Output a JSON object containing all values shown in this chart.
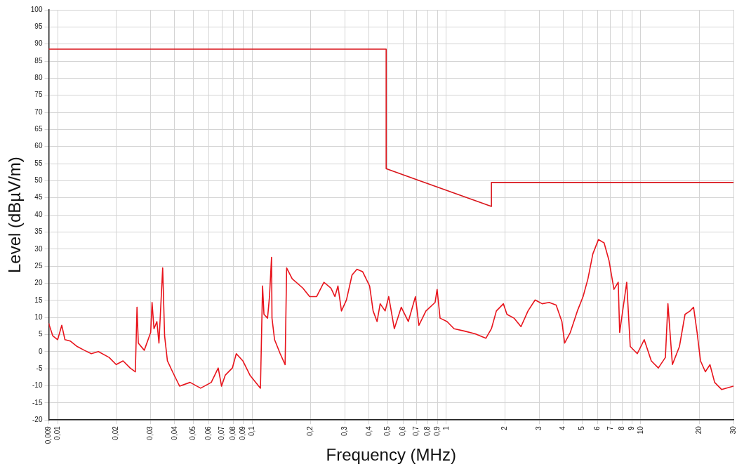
{
  "chart_data": {
    "type": "line",
    "xlabel": "Frequency (MHz)",
    "ylabel": "Level (dBµV/m)",
    "log": "x",
    "grid": true,
    "legend": false,
    "marker": "none",
    "line_style": "solid",
    "xlim": [
      0.009,
      30
    ],
    "ylim": [
      -20,
      100
    ],
    "xticks": [
      {
        "value": 0.009,
        "label": "0,009"
      },
      {
        "value": 0.01,
        "label": "0,01"
      },
      {
        "value": 0.02,
        "label": "0,02"
      },
      {
        "value": 0.03,
        "label": "0,03"
      },
      {
        "value": 0.04,
        "label": "0,04"
      },
      {
        "value": 0.05,
        "label": "0,05"
      },
      {
        "value": 0.06,
        "label": "0,06"
      },
      {
        "value": 0.07,
        "label": "0,07"
      },
      {
        "value": 0.08,
        "label": "0,08"
      },
      {
        "value": 0.09,
        "label": "0,09"
      },
      {
        "value": 0.1,
        "label": "0,1"
      },
      {
        "value": 0.2,
        "label": "0,2"
      },
      {
        "value": 0.3,
        "label": "0,3"
      },
      {
        "value": 0.4,
        "label": "0,4"
      },
      {
        "value": 0.5,
        "label": "0,5"
      },
      {
        "value": 0.6,
        "label": "0,6"
      },
      {
        "value": 0.7,
        "label": "0,7"
      },
      {
        "value": 0.8,
        "label": "0,8"
      },
      {
        "value": 0.9,
        "label": "0,9"
      },
      1,
      2,
      3,
      4,
      5,
      6,
      7,
      8,
      9,
      10,
      20,
      30
    ],
    "yticks": [
      -20,
      -15,
      -10,
      -5,
      0,
      5,
      10,
      15,
      20,
      25,
      30,
      35,
      40,
      45,
      50,
      55,
      60,
      65,
      70,
      75,
      80,
      85,
      90,
      95,
      100
    ],
    "series": [
      {
        "color": "#d9151b",
        "x": [
          0.009,
          0.49,
          0.49,
          1.705,
          1.705,
          30
        ],
        "values": [
          88.5,
          88.5,
          53.5,
          42.5,
          49.5,
          49.5
        ]
      },
      {
        "color": "#e8141c",
        "x": [
          0.009,
          0.00944,
          0.01,
          0.0105,
          0.0109,
          0.0116,
          0.0126,
          0.0137,
          0.0149,
          0.0162,
          0.0184,
          0.02,
          0.0217,
          0.0236,
          0.0251,
          0.0256,
          0.026,
          0.0279,
          0.0301,
          0.0306,
          0.0313,
          0.0324,
          0.0332,
          0.0347,
          0.0355,
          0.0367,
          0.039,
          0.0424,
          0.048,
          0.0544,
          0.0617,
          0.067,
          0.0697,
          0.0728,
          0.0792,
          0.083,
          0.0897,
          0.0976,
          0.1105,
          0.1133,
          0.1152,
          0.1202,
          0.123,
          0.126,
          0.1267,
          0.1306,
          0.1396,
          0.148,
          0.1507,
          0.161,
          0.1825,
          0.198,
          0.215,
          0.2246,
          0.2344,
          0.2546,
          0.267,
          0.2768,
          0.2885,
          0.306,
          0.327,
          0.3466,
          0.3707,
          0.4028,
          0.4198,
          0.44,
          0.4564,
          0.484,
          0.505,
          0.5396,
          0.586,
          0.637,
          0.693,
          0.722,
          0.785,
          0.875,
          0.896,
          0.928,
          1.008,
          1.096,
          1.242,
          1.408,
          1.596,
          1.705,
          1.808,
          1.965,
          2.05,
          2.228,
          2.42,
          2.63,
          2.861,
          3.11,
          3.38,
          3.67,
          3.93,
          4.06,
          4.34,
          4.72,
          5.05,
          5.35,
          5.67,
          6.06,
          6.48,
          6.87,
          7.28,
          7.66,
          7.79,
          8.47,
          8.83,
          9.6,
          10.42,
          11.33,
          12.32,
          13.39,
          13.8,
          14.55,
          15.82,
          16.9,
          17.94,
          18.7,
          19.5,
          20.3,
          21.5,
          22.7,
          24,
          26.1,
          30
        ],
        "values": [
          8.2,
          4.6,
          3.5,
          7.7,
          3.5,
          3.1,
          1.5,
          0.4,
          -0.6,
          0,
          -1.7,
          -3.8,
          -2.7,
          -4.8,
          -5.9,
          13,
          2.5,
          0.4,
          5.6,
          14.4,
          6.7,
          8.8,
          2.5,
          24.5,
          4.6,
          -2.7,
          -5.9,
          -10.1,
          -9,
          -10.7,
          -9,
          -4.8,
          -10.1,
          -6.9,
          -4.8,
          -0.6,
          -2.7,
          -6.9,
          -10.7,
          19.2,
          10.9,
          9.8,
          16.1,
          27.6,
          9.8,
          3.5,
          -0.6,
          -3.8,
          24.5,
          21.3,
          18.6,
          16.1,
          16.1,
          18.2,
          20.3,
          18.6,
          16.1,
          19.2,
          11.9,
          15.1,
          22.4,
          24.1,
          23.4,
          19.2,
          11.9,
          8.8,
          14,
          11.9,
          16.1,
          6.7,
          13,
          8.8,
          16.1,
          7.7,
          11.9,
          14.4,
          18.2,
          9.8,
          8.8,
          6.7,
          6,
          5.2,
          3.9,
          6.7,
          11.9,
          14,
          10.9,
          9.8,
          7.3,
          11.9,
          15.1,
          14,
          14.4,
          13.6,
          8.8,
          2.5,
          5.6,
          11.9,
          16.1,
          21.3,
          28.6,
          32.8,
          31.8,
          26.6,
          18.2,
          20.3,
          5.6,
          20.3,
          1.5,
          -0.6,
          3.5,
          -2.7,
          -4.8,
          -1.7,
          14,
          -3.8,
          1.5,
          10.9,
          11.9,
          13,
          5.6,
          -2.7,
          -5.9,
          -3.8,
          -9,
          -11.1,
          -10.1
        ]
      }
    ]
  }
}
